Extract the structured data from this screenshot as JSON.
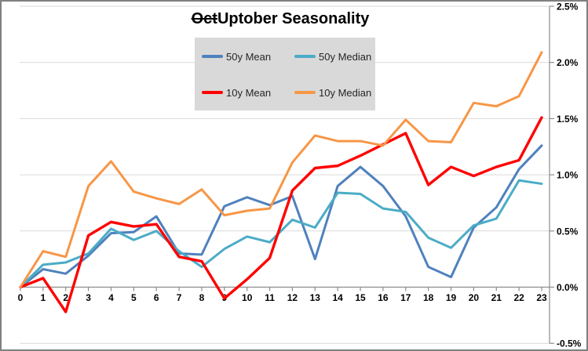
{
  "title": {
    "strike": "Oct",
    "rest": "Uptober Seasonality"
  },
  "legend": {
    "position": "inside-top-center",
    "items": [
      {
        "label": "50y Mean",
        "color": "#4F81BD"
      },
      {
        "label": "50y Median",
        "color": "#4BACC6"
      },
      {
        "label": "10y Mean",
        "color": "#FF0000"
      },
      {
        "label": "10y Median",
        "color": "#F79646"
      }
    ]
  },
  "chart_data": {
    "type": "line",
    "title": "OctUptober Seasonality",
    "title_strikethrough_prefix": "Oct",
    "xlabel": "",
    "ylabel": "",
    "units": "percent",
    "grid": true,
    "ylim": [
      -0.5,
      2.5
    ],
    "x_labels": [
      "0",
      "1",
      "2",
      "3",
      "4",
      "5",
      "6",
      "7",
      "8",
      "9",
      "10",
      "11",
      "12",
      "13",
      "14",
      "15",
      "16",
      "17",
      "18",
      "19",
      "20",
      "21",
      "22",
      "23"
    ],
    "categories": [
      0,
      1,
      2,
      3,
      4,
      5,
      6,
      7,
      8,
      9,
      10,
      11,
      12,
      13,
      14,
      15,
      16,
      17,
      18,
      19,
      20,
      21,
      22,
      23
    ],
    "y_ticks": [
      {
        "label": "2.5%",
        "value": 2.5
      },
      {
        "label": "2.0%",
        "value": 2.0
      },
      {
        "label": "1.5%",
        "value": 1.5
      },
      {
        "label": "1.0%",
        "value": 1.0
      },
      {
        "label": "0.5%",
        "value": 0.5
      },
      {
        "label": "0.0%",
        "value": 0.0
      },
      {
        "label": "-0.5%",
        "value": -0.5
      }
    ],
    "series": [
      {
        "name": "50y Mean",
        "color": "#4F81BD",
        "width": 3,
        "values": [
          0.0,
          0.16,
          0.12,
          0.28,
          0.48,
          0.49,
          0.63,
          0.3,
          0.29,
          0.72,
          0.8,
          0.73,
          0.81,
          0.25,
          0.9,
          1.07,
          0.9,
          0.63,
          0.18,
          0.09,
          0.53,
          0.71,
          1.05,
          1.26
        ]
      },
      {
        "name": "50y Median",
        "color": "#4BACC6",
        "width": 3,
        "values": [
          0.0,
          0.2,
          0.22,
          0.3,
          0.52,
          0.42,
          0.5,
          0.32,
          0.18,
          0.34,
          0.45,
          0.4,
          0.6,
          0.53,
          0.84,
          0.83,
          0.7,
          0.67,
          0.44,
          0.35,
          0.55,
          0.61,
          0.95,
          0.92
        ]
      },
      {
        "name": "10y Mean",
        "color": "#FF0000",
        "width": 3.4,
        "values": [
          0.0,
          0.08,
          -0.22,
          0.46,
          0.58,
          0.54,
          0.56,
          0.27,
          0.23,
          -0.1,
          0.07,
          0.26,
          0.86,
          1.06,
          1.08,
          1.17,
          1.27,
          1.37,
          0.91,
          1.07,
          0.99,
          1.07,
          1.13,
          1.51
        ]
      },
      {
        "name": "10y Median",
        "color": "#F79646",
        "width": 3,
        "values": [
          0.0,
          0.32,
          0.27,
          0.9,
          1.12,
          0.85,
          0.79,
          0.74,
          0.87,
          0.64,
          0.68,
          0.7,
          1.11,
          1.35,
          1.3,
          1.3,
          1.26,
          1.49,
          1.3,
          1.29,
          1.64,
          1.61,
          1.7,
          2.09
        ]
      }
    ]
  },
  "colors": {
    "gridline": "#D9D9D9",
    "axis": "#8C8C8C",
    "tick": "#8C8C8C",
    "legend_bg": "#D9D9D9",
    "outer_border": "#808080",
    "axis_label_text": "#000000",
    "legend_text": "#262626"
  }
}
